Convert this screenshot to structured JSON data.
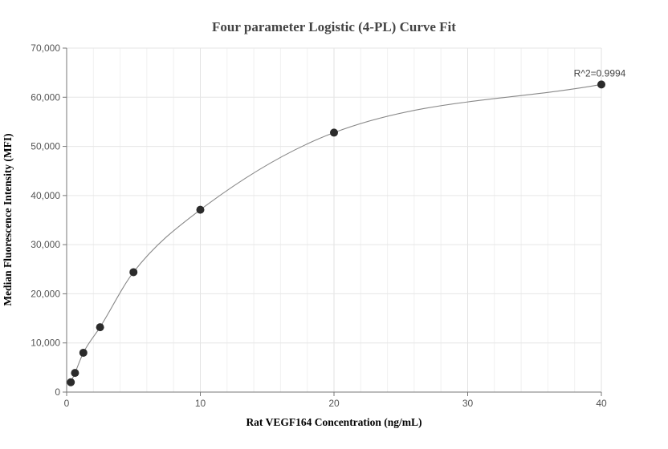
{
  "chart_data": {
    "type": "scatter",
    "title": "Four parameter Logistic (4-PL) Curve Fit",
    "xlabel": "Rat VEGF164 Concentration (ng/mL)",
    "ylabel": "Median Fluorescence Intensity (MFI)",
    "xlim": [
      0,
      40
    ],
    "ylim": [
      0,
      70000
    ],
    "x_ticks": [
      0,
      10,
      20,
      30,
      40
    ],
    "x_tick_labels": [
      "0",
      "10",
      "20",
      "30",
      "40"
    ],
    "y_ticks": [
      0,
      10000,
      20000,
      30000,
      40000,
      50000,
      60000,
      70000
    ],
    "y_tick_labels": [
      "0",
      "10,000",
      "20,000",
      "30,000",
      "40,000",
      "50,000",
      "60,000",
      "70,000"
    ],
    "grid": true,
    "points": {
      "x": [
        0.3125,
        0.625,
        1.25,
        2.5,
        5,
        10,
        20,
        40
      ],
      "y": [
        2000,
        3900,
        8000,
        13200,
        24400,
        37100,
        52800,
        62600
      ]
    },
    "fit_curve": {
      "x": [
        0.3125,
        0.625,
        1.25,
        2.5,
        5,
        10,
        20,
        40
      ],
      "y": [
        2000,
        3900,
        8000,
        13200,
        24400,
        37100,
        52800,
        62600
      ]
    },
    "annotation": "R^2=0.9994",
    "colors": {
      "point": "#2b2b2b",
      "curve": "#888888",
      "grid": "#e6e6e6",
      "axis": "#777777"
    }
  }
}
